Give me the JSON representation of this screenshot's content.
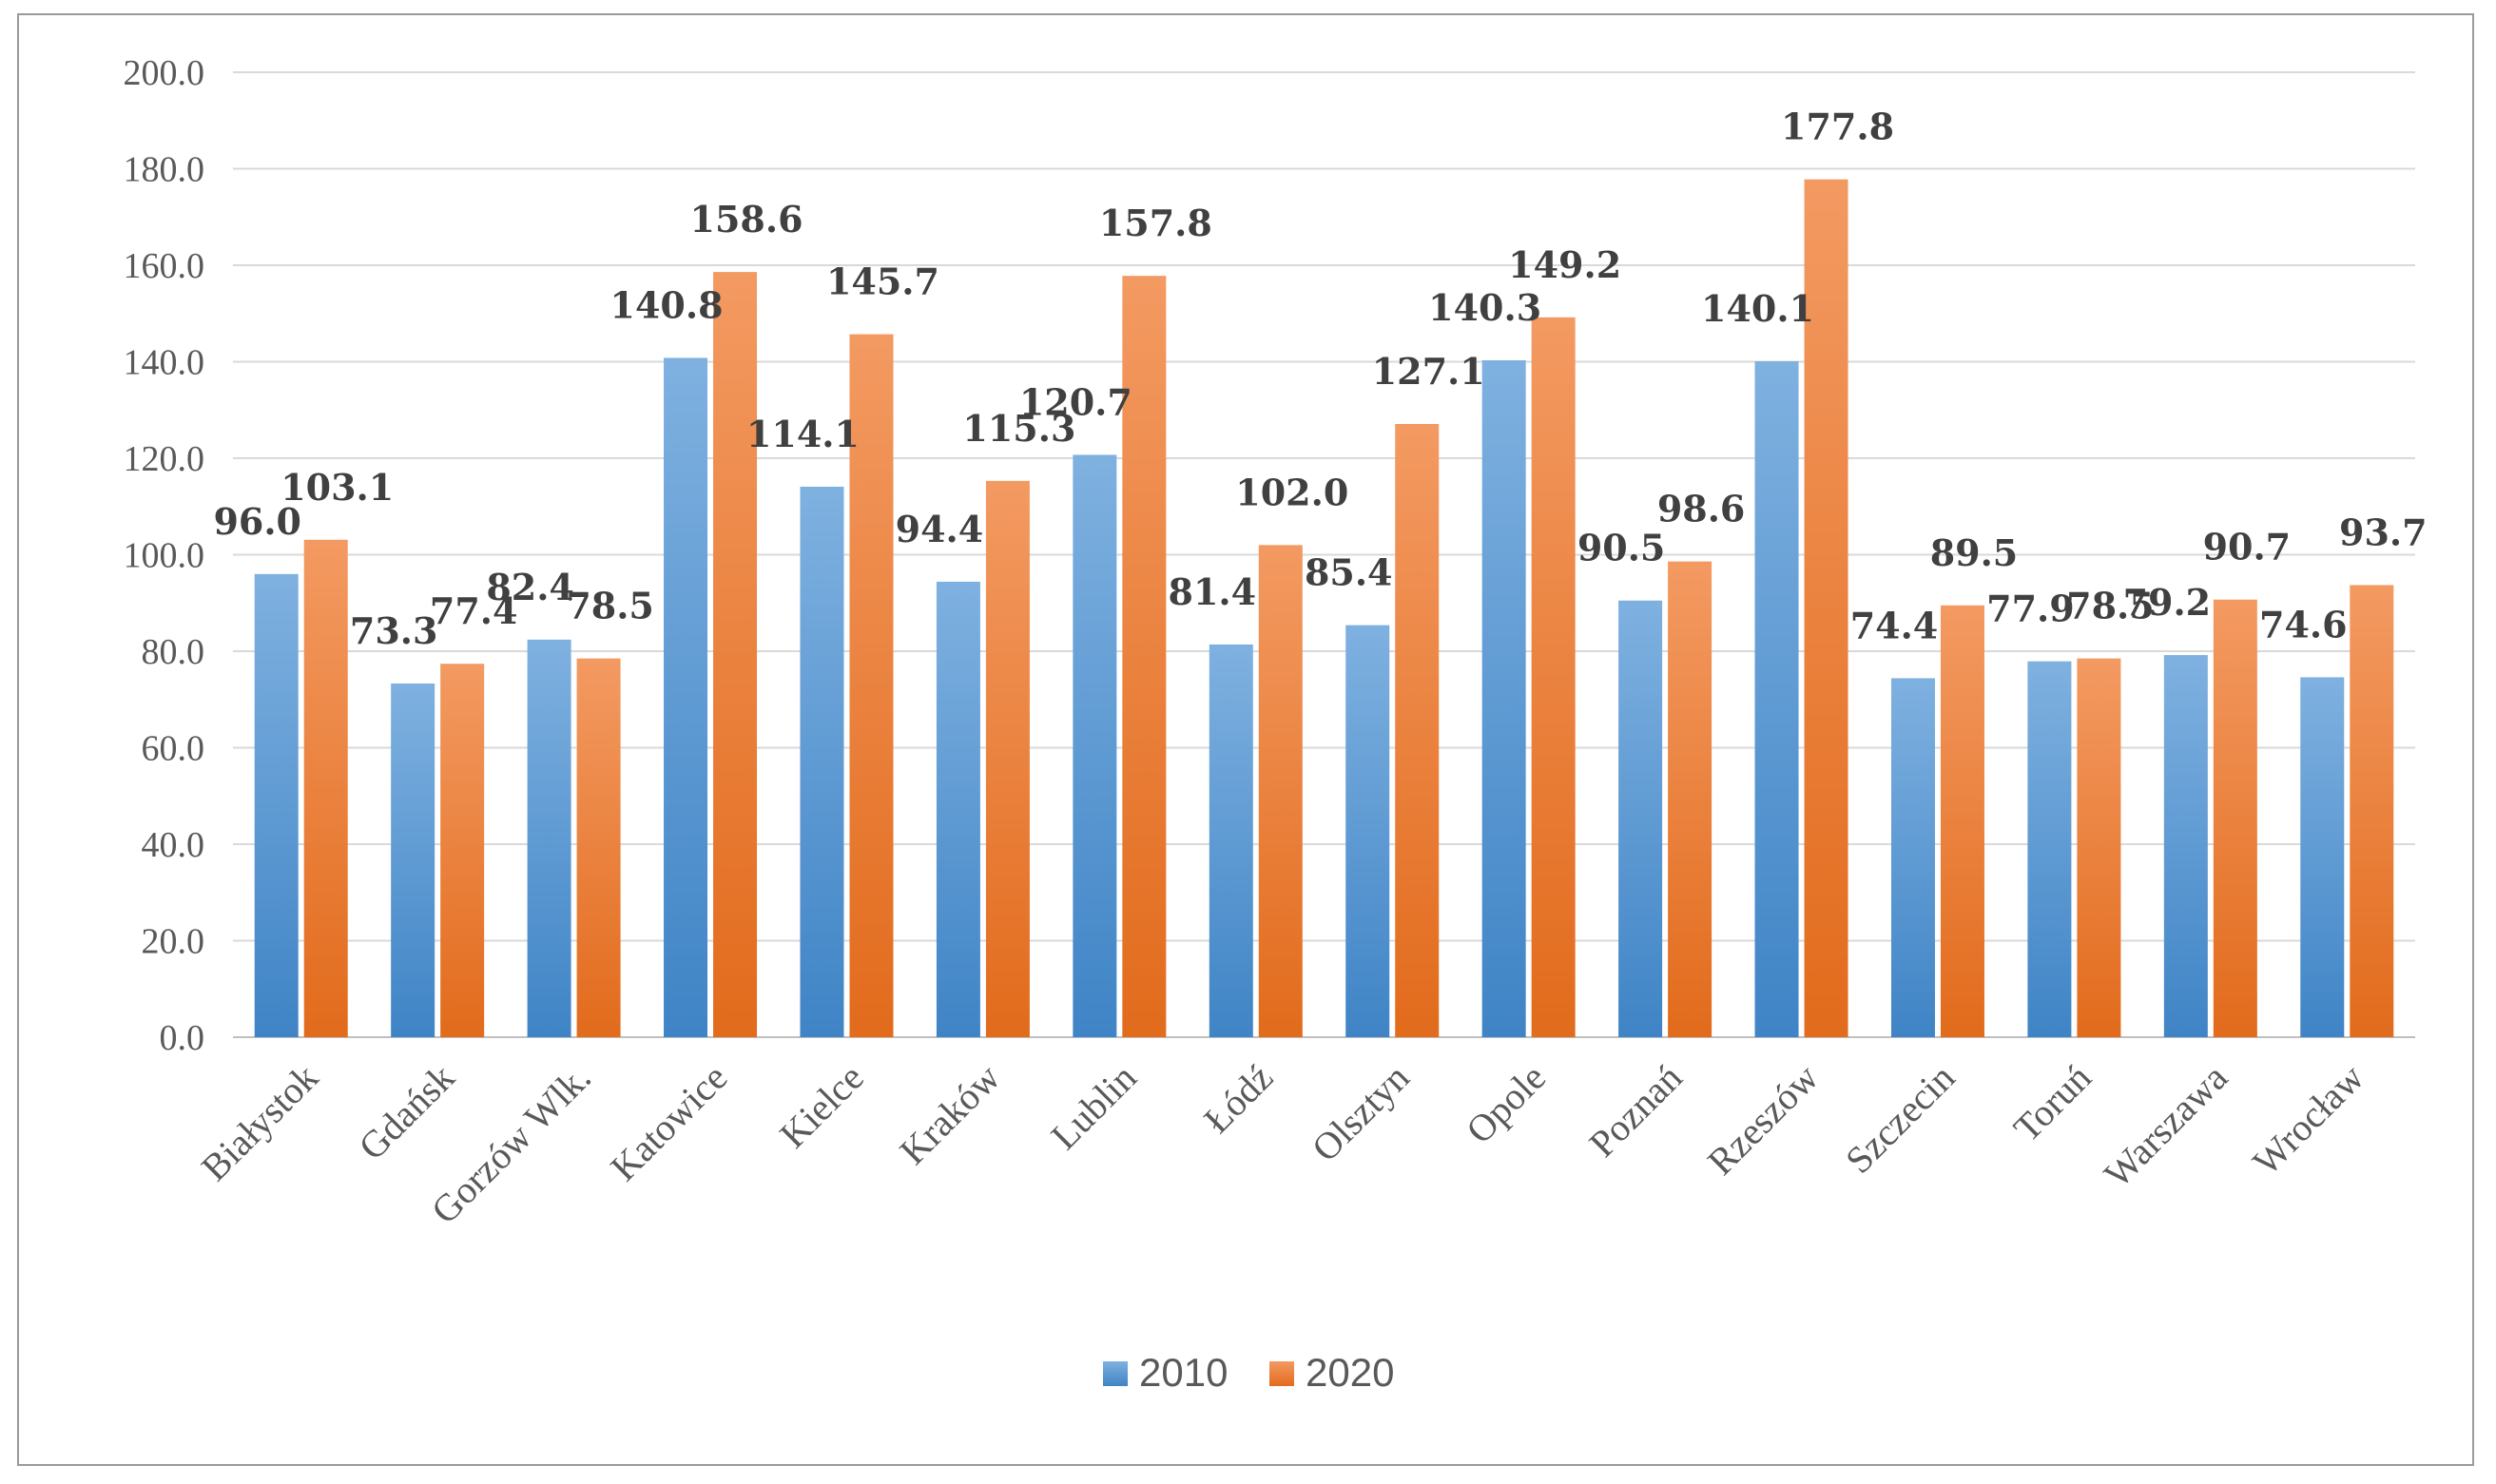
{
  "chart_data": {
    "type": "bar",
    "title": "",
    "xlabel": "",
    "ylabel": "",
    "ylim": [
      0,
      200
    ],
    "yticks": [
      0,
      20,
      40,
      60,
      80,
      100,
      120,
      140,
      160,
      180,
      200
    ],
    "ytick_labels": [
      "0.0",
      "20.0",
      "40.0",
      "60.0",
      "80.0",
      "100.0",
      "120.0",
      "140.0",
      "160.0",
      "180.0",
      "200.0"
    ],
    "grid": true,
    "legend_position": "bottom",
    "categories": [
      "Białystok",
      "Gdańsk",
      "Gorzów Wlk.",
      "Katowice",
      "Kielce",
      "Kraków",
      "Lublin",
      "Łódź",
      "Olsztyn",
      "Opole",
      "Poznań",
      "Rzeszów",
      "Szczecin",
      "Toruń",
      "Warszawa",
      "Wrocław"
    ],
    "series": [
      {
        "name": "2010",
        "color": "#5B9BD5",
        "values": [
          96.0,
          73.3,
          82.4,
          140.8,
          114.1,
          94.4,
          120.7,
          81.4,
          85.4,
          140.3,
          90.5,
          140.1,
          74.4,
          77.9,
          79.2,
          74.6
        ],
        "value_labels": [
          "96.0",
          "73.3",
          "82.4",
          "140.8",
          "114.1",
          "94.4",
          "120.7",
          "81.4",
          "85.4",
          "140.3",
          "90.5",
          "140.1",
          "74.4",
          "77.9",
          "79.2",
          "74.6"
        ]
      },
      {
        "name": "2020",
        "color": "#ED7D31",
        "values": [
          103.1,
          77.4,
          78.5,
          158.6,
          145.7,
          115.3,
          157.8,
          102.0,
          127.1,
          149.2,
          98.6,
          177.8,
          89.5,
          78.5,
          90.7,
          93.7
        ],
        "value_labels": [
          "103.1",
          "77.4",
          "78.5",
          "158.6",
          "145.7",
          "115.3",
          "157.8",
          "102.0",
          "127.1",
          "149.2",
          "98.6",
          "177.8",
          "89.5",
          "78.5",
          "90.7",
          "93.7"
        ]
      }
    ]
  }
}
